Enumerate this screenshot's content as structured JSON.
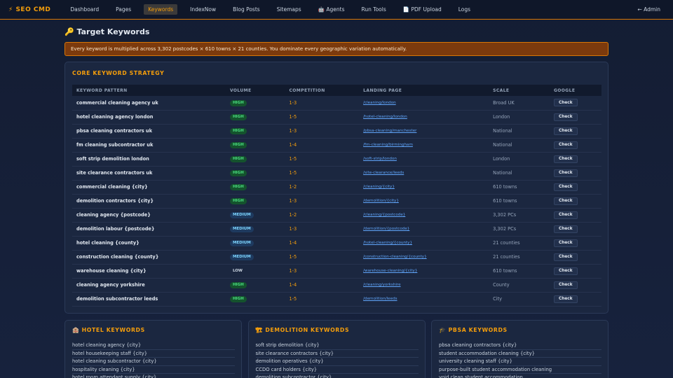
{
  "nav": {
    "brand": "⚡ SEO CMD",
    "items": [
      "Dashboard",
      "Pages",
      "Keywords",
      "IndexNow",
      "Blog Posts",
      "Sitemaps",
      "🤖 Agents",
      "Run Tools",
      "📄 PDF Upload",
      "Logs"
    ],
    "active": 2,
    "admin": "← Admin"
  },
  "page": {
    "title": "🔑 Target Keywords",
    "banner": "Every keyword is multiplied across 3,302 postcodes × 610 towns × 21 counties. You dominate every geographic variation automatically."
  },
  "core": {
    "title": "CORE KEYWORD STRATEGY",
    "headers": [
      "KEYWORD PATTERN",
      "VOLUME",
      "COMPETITION",
      "LANDING PAGE",
      "SCALE",
      "GOOGLE"
    ],
    "rows": [
      [
        "commercial cleaning agency uk",
        "HIGH",
        "1-3",
        "/cleaning/london",
        "Broad UK",
        "Check"
      ],
      [
        "hotel cleaning agency london",
        "HIGH",
        "1-5",
        "/hotel-cleaning/london",
        "London",
        "Check"
      ],
      [
        "pbsa cleaning contractors uk",
        "HIGH",
        "1-3",
        "/pbsa-cleaning/manchester",
        "National",
        "Check"
      ],
      [
        "fm cleaning subcontractor uk",
        "HIGH",
        "1-4",
        "/fm-cleaning/birmingham",
        "National",
        "Check"
      ],
      [
        "soft strip demolition london",
        "HIGH",
        "1-5",
        "/soft-strip/london",
        "London",
        "Check"
      ],
      [
        "site clearance contractors uk",
        "HIGH",
        "1-5",
        "/site-clearance/leeds",
        "National",
        "Check"
      ],
      [
        "commercial cleaning {city}",
        "HIGH",
        "1-2",
        "/cleaning/{city}",
        "610 towns",
        "Check"
      ],
      [
        "demolition contractors {city}",
        "HIGH",
        "1-3",
        "/demolition/{city}",
        "610 towns",
        "Check"
      ],
      [
        "cleaning agency {postcode}",
        "MEDIUM",
        "1-2",
        "/cleaning/{postcode}",
        "3,302 PCs",
        "Check"
      ],
      [
        "demolition labour {postcode}",
        "MEDIUM",
        "1-3",
        "/demolition/{postcode}",
        "3,302 PCs",
        "Check"
      ],
      [
        "hotel cleaning {county}",
        "MEDIUM",
        "1-4",
        "/hotel-cleaning/{county}",
        "21 counties",
        "Check"
      ],
      [
        "construction cleaning {county}",
        "MEDIUM",
        "1-5",
        "/construction-cleaning/{county}",
        "21 counties",
        "Check"
      ],
      [
        "warehouse cleaning {city}",
        "LOW",
        "1-3",
        "/warehouse-cleaning/{city}",
        "610 towns",
        "Check"
      ],
      [
        "cleaning agency yorkshire",
        "HIGH",
        "1-4",
        "/cleaning/yorkshire",
        "County",
        "Check"
      ],
      [
        "demolition subcontractor leeds",
        "HIGH",
        "1-5",
        "/demolition/leeds",
        "City",
        "Check"
      ]
    ]
  },
  "groups": [
    {
      "title": "🏨 HOTEL KEYWORDS",
      "items": [
        "hotel cleaning agency {city}",
        "hotel housekeeping staff {city}",
        "hotel cleaning subcontractor {city}",
        "hospitality cleaning {city}",
        "hotel room attendant supply {city}"
      ]
    },
    {
      "title": "🏗 DEMOLITION KEYWORDS",
      "items": [
        "soft strip demolition {city}",
        "site clearance contractors {city}",
        "demolition operatives {city}",
        "CCDO card holders {city}",
        "demolition subcontractor {city}"
      ]
    },
    {
      "title": "🎓 PBSA KEYWORDS",
      "items": [
        "pbsa cleaning contractors {city}",
        "student accommodation cleaning {city}",
        "university cleaning staff {city}",
        "purpose-built student accommodation cleaning",
        "void clean student accommodation"
      ]
    }
  ]
}
